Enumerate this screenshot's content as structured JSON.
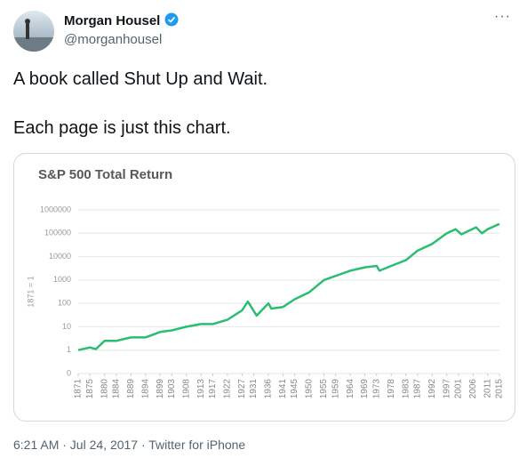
{
  "tweet": {
    "name": "Morgan Housel",
    "handle": "@morganhousel",
    "lines": [
      "A book called Shut Up and Wait.",
      "Each page is just this chart."
    ],
    "footer": "6:21 AM · Jul 24, 2017 · Twitter for iPhone"
  },
  "chart_data": {
    "type": "line",
    "title": "S&P 500 Total Return",
    "y_label": "1871 = 1",
    "yscale": "log",
    "grid": true,
    "color": "#2bbd72",
    "x": [
      1871,
      1875,
      1877,
      1880,
      1884,
      1889,
      1894,
      1899,
      1903,
      1908,
      1913,
      1917,
      1922,
      1927,
      1929,
      1932,
      1936,
      1937,
      1941,
      1945,
      1950,
      1955,
      1959,
      1964,
      1969,
      1973,
      1974,
      1978,
      1983,
      1987,
      1992,
      1997,
      2000,
      2002,
      2007,
      2009,
      2011,
      2015
    ],
    "values": [
      1,
      1.3,
      1.1,
      2.5,
      2.5,
      3.5,
      3.5,
      6,
      7,
      10,
      13,
      13,
      20,
      50,
      120,
      30,
      100,
      60,
      70,
      150,
      300,
      1000,
      1500,
      2500,
      3500,
      4000,
      2500,
      4000,
      7000,
      18000,
      35000,
      100000,
      150000,
      90000,
      180000,
      100000,
      150000,
      250000
    ],
    "xlim": [
      1871,
      2015
    ],
    "xticks": [
      1871,
      1875,
      1880,
      1884,
      1889,
      1894,
      1899,
      1903,
      1908,
      1913,
      1917,
      1922,
      1927,
      1931,
      1936,
      1941,
      1945,
      1950,
      1955,
      1959,
      1964,
      1969,
      1973,
      1978,
      1983,
      1987,
      1992,
      1997,
      2001,
      2006,
      2011,
      2015
    ],
    "ylim": [
      0.1,
      1000000
    ],
    "yticks": [
      {
        "value": 0.1,
        "label": "0"
      },
      1,
      10,
      100,
      1000,
      10000,
      100000,
      1000000
    ]
  }
}
